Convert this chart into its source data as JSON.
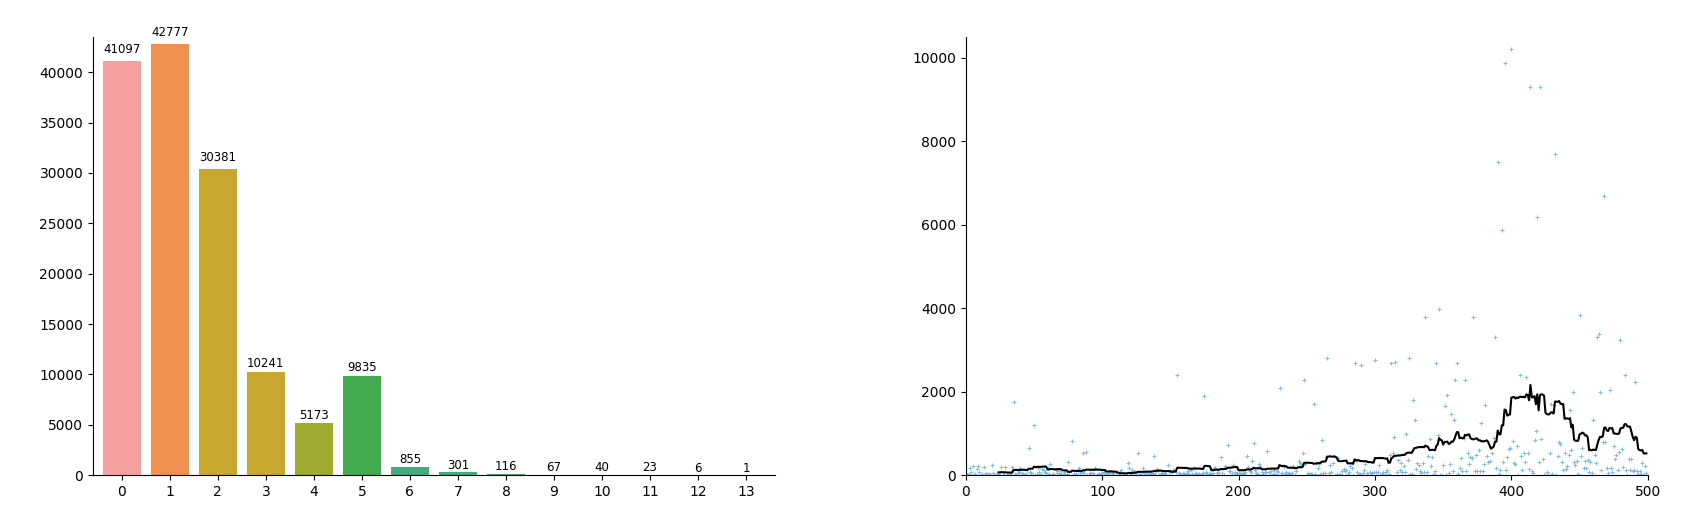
{
  "bar_categories": [
    0,
    1,
    2,
    3,
    4,
    5,
    6,
    7,
    8,
    9,
    10,
    11,
    12,
    13
  ],
  "bar_values": [
    41097,
    42777,
    30381,
    10241,
    5173,
    9835,
    855,
    301,
    116,
    67,
    40,
    23,
    6,
    1
  ],
  "bar_colors": [
    "#f4a0a0",
    "#f09050",
    "#c8a830",
    "#c8a830",
    "#a0aa30",
    "#44aa50",
    "#44aa80",
    "#44aa80",
    "#44aa80",
    "#44aa80",
    "#44aa80",
    "#44aa80",
    "#44aa80",
    "#44aa80"
  ],
  "scatter_seed": 12345,
  "scatter_n": 500,
  "rolling_window": 25,
  "scatter_color": "#6ab0e0",
  "rolling_color": "#000000",
  "scatter_xlim": [
    0,
    500
  ],
  "scatter_ylim": [
    0,
    10500
  ],
  "bar_ylim": [
    0,
    43500
  ],
  "bar_yticks": [
    0,
    5000,
    10000,
    15000,
    20000,
    25000,
    30000,
    35000,
    40000
  ],
  "scatter_yticks": [
    0,
    2000,
    4000,
    6000,
    8000,
    10000
  ]
}
